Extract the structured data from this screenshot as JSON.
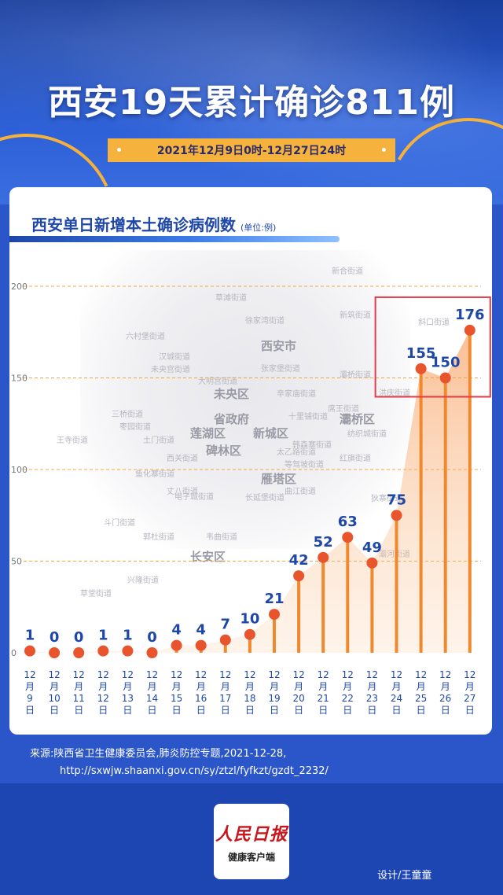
{
  "header": {
    "title": "西安19天累计确诊811例",
    "date_range": "2021年12月9日0时-12月27日24时"
  },
  "chart_title": "西安单日新增本土确诊病例数",
  "chart_unit": "(单位:例)",
  "chart_data": {
    "type": "bar",
    "title": "西安单日新增本土确诊病例数",
    "unit": "(单位:例)",
    "categories": [
      "12月9日",
      "12月10日",
      "12月11日",
      "12月12日",
      "12月13日",
      "12月14日",
      "12月15日",
      "12月16日",
      "12月17日",
      "12月18日",
      "12月19日",
      "12月20日",
      "12月21日",
      "12月22日",
      "12月23日",
      "12月24日",
      "12月25日",
      "12月26日",
      "12月27日"
    ],
    "values": [
      1,
      0,
      0,
      1,
      1,
      0,
      4,
      4,
      7,
      10,
      21,
      42,
      52,
      63,
      49,
      75,
      155,
      150,
      176
    ],
    "y_ticks": [
      0,
      50,
      100,
      150,
      200
    ],
    "ylim": [
      0,
      200
    ],
    "highlight_categories": [
      "12月25日",
      "12月26日",
      "12月27日"
    ],
    "grid": true
  },
  "map_labels": [
    "新合街道",
    "草滩街道",
    "徐家湾街道",
    "新筑街道",
    "六村堡街道",
    "汉城街道",
    "未央宫街道",
    "西安市",
    "张家堡街道",
    "斜口街道",
    "大明宫街道",
    "未央区",
    "辛家庙街道",
    "灞桥街道",
    "洪庆街道",
    "三桥街道",
    "枣园街道",
    "土门街道",
    "莲湖区",
    "省政府",
    "新城区",
    "十里铺街道",
    "席王街道",
    "灞桥区",
    "纺织城街道",
    "王寺街道",
    "西关街道",
    "碑林区",
    "太乙路街道",
    "韩森寨街道",
    "红旗街道",
    "鱼化寨街道",
    "丈八街道",
    "等驾坡街道",
    "电子城街道",
    "雁塔区",
    "长延堡街道",
    "曲江街道",
    "狄寨街道",
    "郭杜街道",
    "韦曲街道",
    "长安区",
    "兴隆街道",
    "斗门街道",
    "草堂街道",
    "灞河街道"
  ],
  "source": {
    "line1": "来源:陕西省卫生健康委员会,肺炎防控专题,2021-12-28,",
    "line2": "http://sxwjw.shaanxi.gov.cn/sy/ztzl/fyfkzt/gzdt_2232/"
  },
  "footer": {
    "logo_main": "人民日报",
    "logo_sub": "健康客户端",
    "designer": "设计/王童童"
  },
  "colors": {
    "primary_blue": "#1f47a8",
    "accent_orange": "#f0882e",
    "dot_red": "#e8542c",
    "highlight_red": "#e03c4a",
    "band_yellow": "#f5b23d"
  }
}
